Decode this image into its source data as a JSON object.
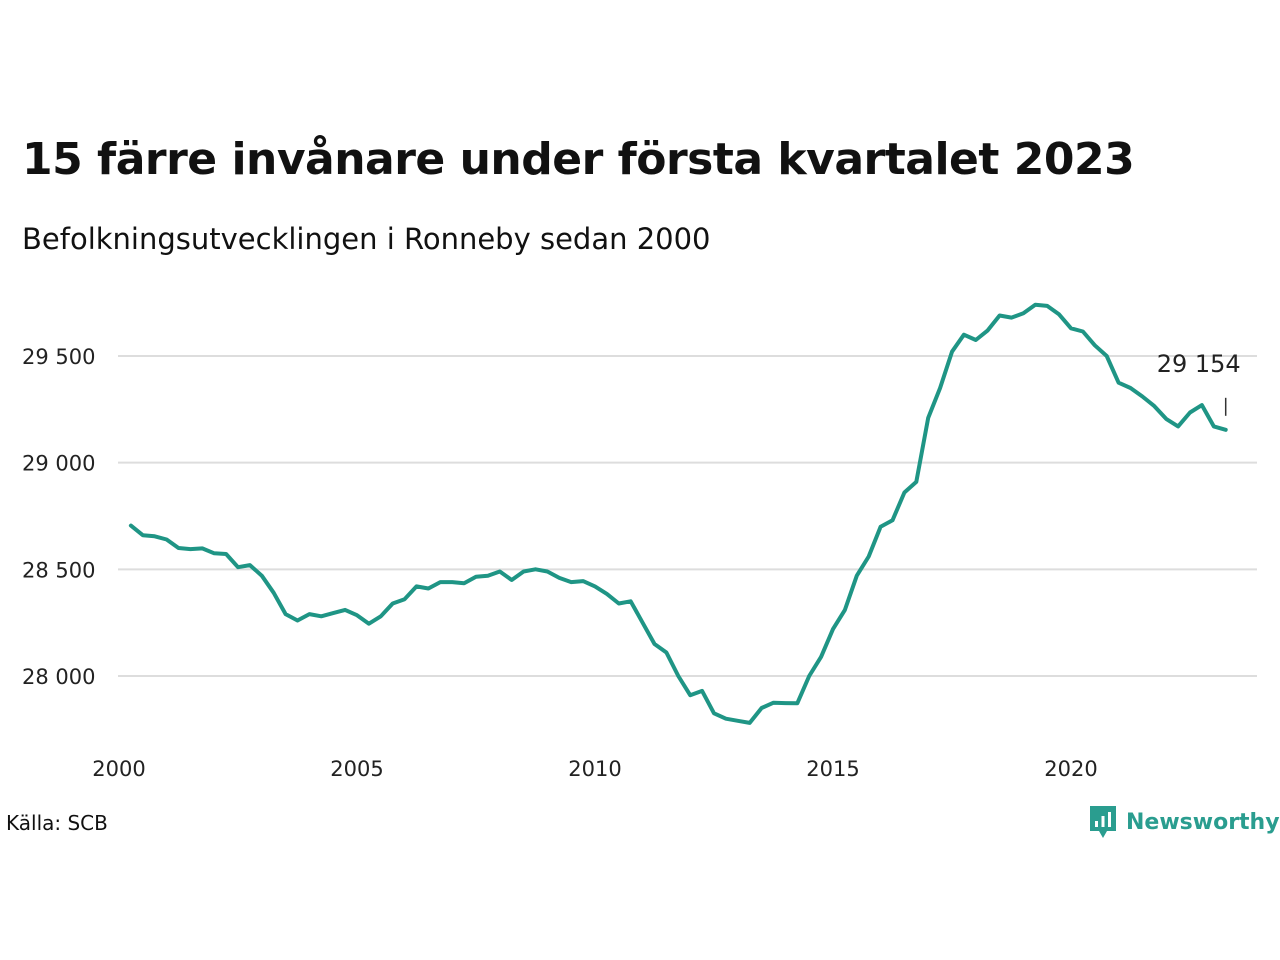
{
  "title": "15 färre invånare under första kvartalet 2023",
  "subtitle": "Befolkningsutvecklingen i Ronneby sedan 2000",
  "source": "Källa: SCB",
  "brand": "Newsworthy",
  "colors": {
    "line": "#1f9585",
    "grid": "#dddddd",
    "brand": "#2a9d8f"
  },
  "chart_data": {
    "type": "line",
    "title": "15 färre invånare under första kvartalet 2023",
    "subtitle": "Befolkningsutvecklingen i Ronneby sedan 2000",
    "xlabel": "",
    "ylabel": "",
    "xlim": [
      2000,
      2024
    ],
    "ylim": [
      27700,
      29800
    ],
    "grid": true,
    "x_ticks": [
      2000,
      2005,
      2010,
      2015,
      2020
    ],
    "x_tick_labels": [
      "2000",
      "2005",
      "2010",
      "2015",
      "2020"
    ],
    "y_ticks": [
      28000,
      28500,
      29000,
      29500
    ],
    "y_tick_labels": [
      "28 000",
      "28 500",
      "29 000",
      "29 500"
    ],
    "end_label": "29 154",
    "series": [
      {
        "x": [
          2000.25,
          2000.5,
          2000.75,
          2001,
          2001.25,
          2001.5,
          2001.75,
          2002,
          2002.25,
          2002.5,
          2002.75,
          2003,
          2003.25,
          2003.5,
          2003.75,
          2004,
          2004.25,
          2004.5,
          2004.75,
          2005,
          2005.25,
          2005.5,
          2005.75,
          2006,
          2006.25,
          2006.5,
          2006.75,
          2007,
          2007.25,
          2007.5,
          2007.75,
          2008,
          2008.25,
          2008.5,
          2008.75,
          2009,
          2009.25,
          2009.5,
          2009.75,
          2010,
          2010.25,
          2010.5,
          2010.75,
          2011,
          2011.25,
          2011.5,
          2011.75,
          2012,
          2012.25,
          2012.5,
          2012.75,
          2013,
          2013.25,
          2013.5,
          2013.75,
          2014,
          2014.25,
          2014.5,
          2014.75,
          2015,
          2015.25,
          2015.5,
          2015.75,
          2016,
          2016.25,
          2016.5,
          2016.75,
          2017,
          2017.25,
          2017.5,
          2017.75,
          2018,
          2018.25,
          2018.5,
          2018.75,
          2019,
          2019.25,
          2019.5,
          2019.75,
          2020,
          2020.25,
          2020.5,
          2020.75,
          2021,
          2021.25,
          2021.5,
          2021.75,
          2022,
          2022.25,
          2022.5,
          2022.75,
          2023,
          2023.25
        ],
        "values": [
          28705,
          28660,
          28655,
          28640,
          28600,
          28595,
          28598,
          28575,
          28572,
          28510,
          28520,
          28470,
          28390,
          28290,
          28260,
          28290,
          28280,
          28295,
          28310,
          28285,
          28245,
          28280,
          28340,
          28360,
          28420,
          28410,
          28440,
          28440,
          28435,
          28465,
          28470,
          28490,
          28450,
          28490,
          28500,
          28490,
          28460,
          28440,
          28445,
          28420,
          28385,
          28340,
          28350,
          28250,
          28150,
          28110,
          28000,
          27910,
          27930,
          27825,
          27800,
          27790,
          27780,
          27850,
          27875,
          27873,
          27872,
          28000,
          28090,
          28220,
          28310,
          28470,
          28560,
          28700,
          28730,
          28860,
          28910,
          29210,
          29350,
          29520,
          29600,
          29575,
          29620,
          29690,
          29680,
          29700,
          29740,
          29735,
          29695,
          29630,
          29615,
          29550,
          29500,
          29375,
          29350,
          29310,
          29265,
          29205,
          29170,
          29235,
          29270,
          29170,
          29154
        ]
      }
    ]
  }
}
